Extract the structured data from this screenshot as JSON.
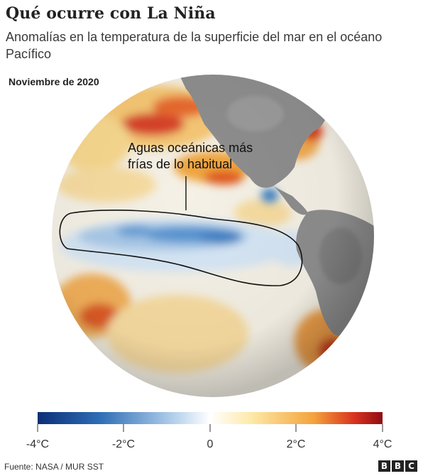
{
  "title": "Qué ocurre con La Niña",
  "subtitle": "Anomalías en la temperatura de la superficie del mar en el océano Pacífico",
  "date_label": "Noviembre de 2020",
  "annotation": {
    "line1": "Aguas oceánicas más",
    "line2": "frías de lo habitual"
  },
  "legend": {
    "ticks": [
      "-4°C",
      "-2°C",
      "0",
      "2°C",
      "4°C"
    ],
    "colors": [
      "#0d3d8f",
      "#3f7fc4",
      "#b9d4ec",
      "#ffffff",
      "#fde8a6",
      "#f6a53a",
      "#d8301f",
      "#a50f15"
    ]
  },
  "source": "Fuente: NASA / MUR SST",
  "logo": [
    "B",
    "B",
    "C"
  ],
  "colors": {
    "cold_deep": "#1f5fae",
    "cold_light": "#c7dcf0",
    "neutral": "#f4f1ea",
    "warm_light": "#f7d889",
    "warm": "#ee8b3a",
    "hot": "#c8331e",
    "land": "#8c8c8c"
  }
}
